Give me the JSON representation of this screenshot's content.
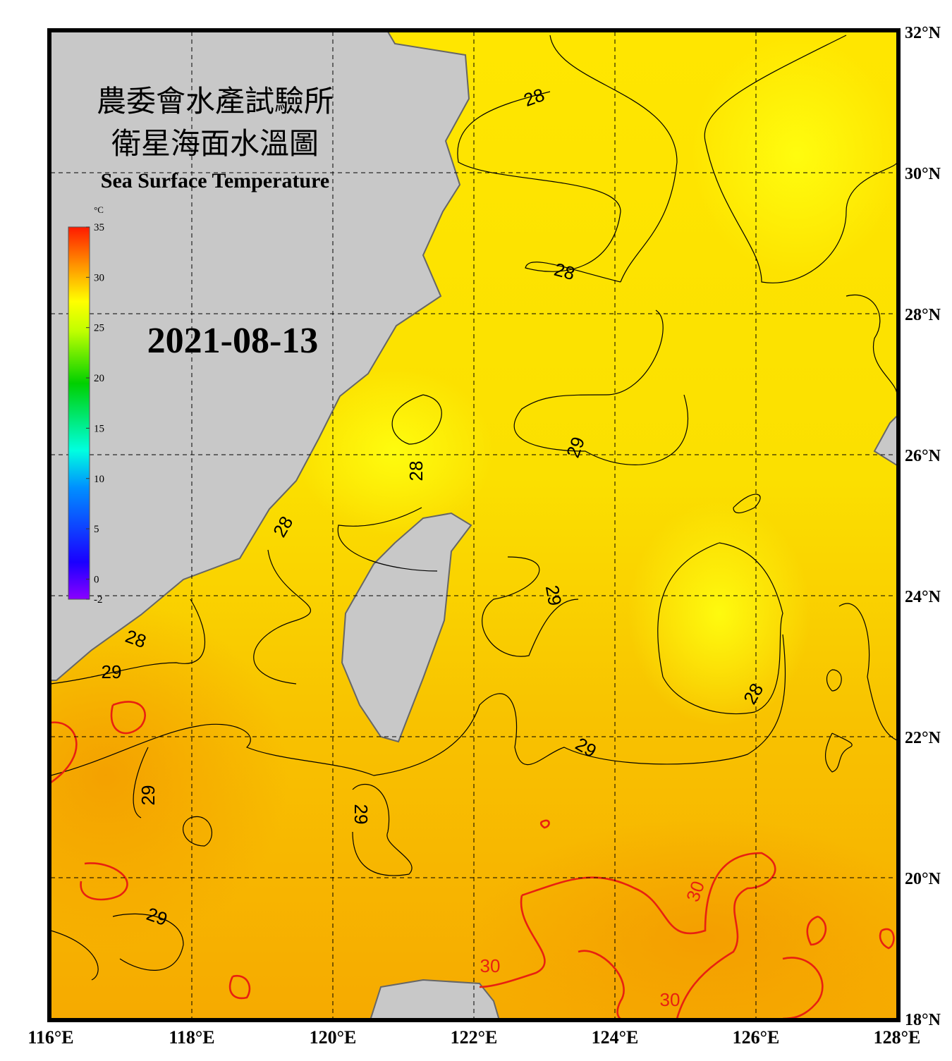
{
  "header": {
    "title_zh_1": "農委會水產試驗所",
    "title_zh_2": "衛星海面水溫圖",
    "title_en": "Sea Surface Temperature"
  },
  "date": "2021-08-13",
  "colorbar": {
    "unit": "°C",
    "ylim": [
      -2,
      35
    ],
    "ticks": [
      35,
      30,
      25,
      20,
      15,
      10,
      5,
      0,
      -2
    ]
  },
  "lon_ticks": [
    {
      "value": 116,
      "label": "116°E"
    },
    {
      "value": 118,
      "label": "118°E"
    },
    {
      "value": 120,
      "label": "120°E"
    },
    {
      "value": 122,
      "label": "122°E"
    },
    {
      "value": 124,
      "label": "124°E"
    },
    {
      "value": 126,
      "label": "126°E"
    },
    {
      "value": 128,
      "label": "128°E"
    }
  ],
  "lat_ticks": [
    {
      "value": 18,
      "label": "18°N"
    },
    {
      "value": 20,
      "label": "20°N"
    },
    {
      "value": 22,
      "label": "22°N"
    },
    {
      "value": 24,
      "label": "24°N"
    },
    {
      "value": 26,
      "label": "26°N"
    },
    {
      "value": 28,
      "label": "28°N"
    },
    {
      "value": 30,
      "label": "30°N"
    },
    {
      "value": 32,
      "label": "32°N"
    }
  ],
  "xlim": [
    116,
    128
  ],
  "ylim": [
    18,
    32
  ],
  "contour_labels": [
    "28",
    "28",
    "29",
    "28",
    "28",
    "29",
    "28",
    "29",
    "28",
    "29",
    "29",
    "29",
    "29",
    "30",
    "30",
    "30"
  ]
}
